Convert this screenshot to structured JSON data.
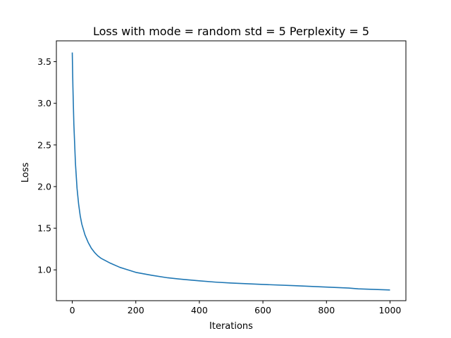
{
  "chart_data": {
    "type": "line",
    "title": "Loss with mode = random std = 5 Perplexity = 5",
    "xlabel": "Iterations",
    "ylabel": "Loss",
    "xlim": [
      -50,
      1050
    ],
    "ylim": [
      0.63,
      3.75
    ],
    "xticks": [
      0,
      200,
      400,
      600,
      800,
      1000
    ],
    "xtick_labels": [
      "0",
      "200",
      "400",
      "600",
      "800",
      "1000"
    ],
    "yticks": [
      1.0,
      1.5,
      2.0,
      2.5,
      3.0,
      3.5
    ],
    "ytick_labels": [
      "1.0",
      "1.5",
      "2.0",
      "2.5",
      "3.0",
      "3.5"
    ],
    "grid": false,
    "series": [
      {
        "color": "#1f77b4",
        "x": [
          0,
          2,
          5,
          10,
          15,
          20,
          25,
          30,
          40,
          50,
          60,
          70,
          80,
          90,
          100,
          120,
          150,
          200,
          250,
          300,
          350,
          400,
          450,
          500,
          600,
          700,
          800,
          870,
          900,
          1000
        ],
        "y": [
          3.61,
          3.2,
          2.75,
          2.28,
          1.98,
          1.79,
          1.65,
          1.55,
          1.42,
          1.33,
          1.26,
          1.21,
          1.17,
          1.14,
          1.12,
          1.08,
          1.03,
          0.97,
          0.935,
          0.905,
          0.885,
          0.868,
          0.853,
          0.842,
          0.825,
          0.81,
          0.793,
          0.782,
          0.772,
          0.758
        ]
      }
    ]
  }
}
